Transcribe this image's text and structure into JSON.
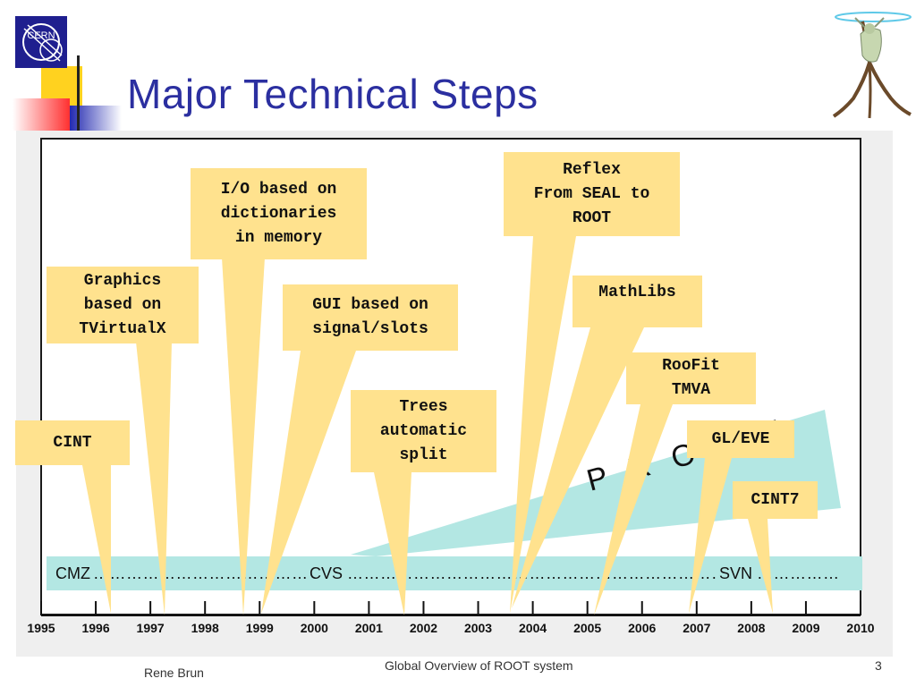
{
  "slide": {
    "title": "Major Technical Steps",
    "logo_text": "CERN",
    "footer_left": "Rene Brun",
    "footer_center": "Global Overview of ROOT system",
    "page_number": "3"
  },
  "callouts": [
    {
      "id": "cint",
      "text": "CINT"
    },
    {
      "id": "graphics",
      "text": "Graphics\nbased on\nTVirtualX"
    },
    {
      "id": "io",
      "text": "I/O based on\ndictionaries\nin memory"
    },
    {
      "id": "gui",
      "text": "GUI based on\nsignal/slots"
    },
    {
      "id": "trees",
      "text": "Trees\nautomatic\nsplit"
    },
    {
      "id": "reflex",
      "text": "Reflex\nFrom SEAL to\nROOT"
    },
    {
      "id": "mathlibs",
      "text": "MathLibs"
    },
    {
      "id": "roofit",
      "text": "RooFit\nTMVA"
    },
    {
      "id": "gleve",
      "text": "GL/EVE"
    },
    {
      "id": "cint7",
      "text": "CINT7"
    }
  ],
  "proof_label": "P R O O F",
  "timeline": {
    "cmz": "CMZ",
    "cvs": "CVS",
    "svn": "SVN"
  },
  "years": [
    "1995",
    "1996",
    "1997",
    "1998",
    "1999",
    "2000",
    "2001",
    "2002",
    "2003",
    "2004",
    "2005",
    "2006",
    "2007",
    "2008",
    "2009",
    "2010"
  ],
  "colors": {
    "title": "#2b2fa0",
    "callout": "#ffe28e",
    "timeline": "#b3e7e3",
    "proof_wedge": "#b3e7e3"
  }
}
